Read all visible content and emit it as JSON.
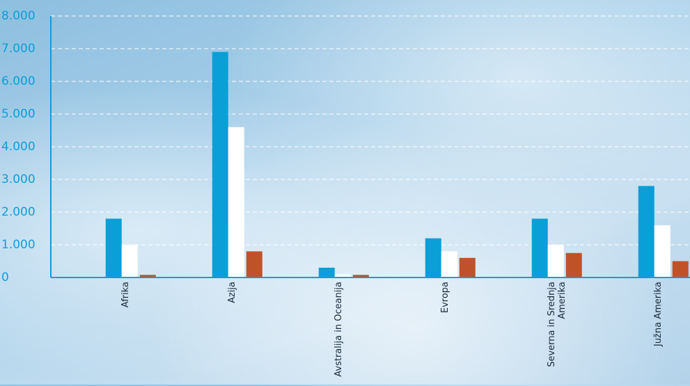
{
  "chart_data": {
    "type": "bar",
    "categories": [
      "Afrika",
      "Azija",
      "Avstralija in Oceanija",
      "Evropa",
      "Severna in Srednja Amerika",
      "Južna Amerika"
    ],
    "series": [
      {
        "color": "#0a9fd6",
        "values": [
          1800,
          6900,
          300,
          1200,
          1800,
          2800
        ]
      },
      {
        "color": "#ffffff",
        "values": [
          1000,
          4600,
          100,
          800,
          1000,
          1600
        ]
      },
      {
        "color": "#c0522a",
        "values": [
          80,
          800,
          80,
          600,
          750,
          500
        ]
      }
    ],
    "ylim": [
      0,
      8000
    ],
    "yticks": [
      0,
      {
        "value": 1000,
        "label": "1.000"
      },
      {
        "value": 2000,
        "label": "2.000"
      },
      {
        "value": 3000,
        "label": "3.000"
      },
      {
        "value": 4000,
        "label": "4.000"
      },
      {
        "value": 5000,
        "label": "5.000"
      },
      {
        "value": 6000,
        "label": "6.000"
      },
      {
        "value": 7000,
        "label": "7.000"
      },
      {
        "value": 8000,
        "label": "8.000"
      }
    ],
    "grid": true
  }
}
